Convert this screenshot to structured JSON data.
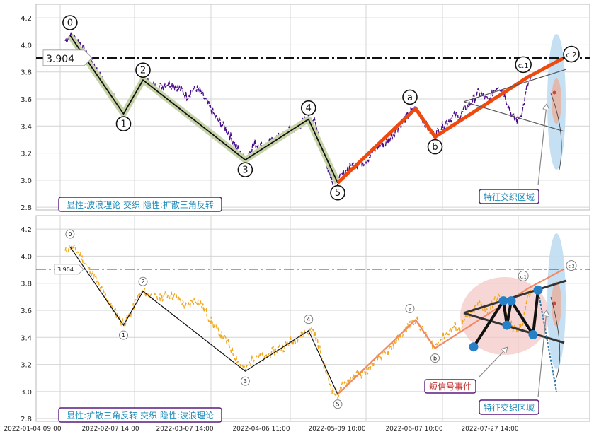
{
  "chart_data": [
    {
      "type": "line",
      "panel": "top",
      "ylim": [
        2.78,
        4.3
      ],
      "y_ticks": [
        "2.8",
        "3.0",
        "3.2",
        "3.4",
        "3.6",
        "3.8",
        "4.0",
        "4.2"
      ],
      "grid": true,
      "hline": {
        "value": 3.904,
        "label": "3.904"
      },
      "series": [
        {
          "values": [
            4.03,
            4.07,
            4.05,
            4.02,
            3.95,
            3.9,
            3.85,
            3.78,
            3.72,
            3.66,
            3.6,
            3.55,
            3.5,
            3.55,
            3.62,
            3.7,
            3.74,
            3.72,
            3.7,
            3.68,
            3.7,
            3.72,
            3.71,
            3.69,
            3.66,
            3.62,
            3.66,
            3.68,
            3.64,
            3.58,
            3.52,
            3.46,
            3.42,
            3.38,
            3.32,
            3.26,
            3.2,
            3.15,
            3.22,
            3.27,
            3.26,
            3.24,
            3.28,
            3.3,
            3.32,
            3.33,
            3.36,
            3.38,
            3.4,
            3.43,
            3.45,
            3.45,
            3.35,
            3.22,
            3.1,
            3.0,
            2.98,
            3.04,
            3.08,
            3.11,
            3.12,
            3.13,
            3.15,
            3.2,
            3.24,
            3.26,
            3.28,
            3.32,
            3.38,
            3.42,
            3.46,
            3.5,
            3.53,
            3.48,
            3.42,
            3.36,
            3.33,
            3.38,
            3.42,
            3.45,
            3.48,
            3.46,
            3.52,
            3.56,
            3.6,
            3.65,
            3.62,
            3.58,
            3.66,
            3.7,
            3.66,
            3.56,
            3.46,
            3.44,
            3.52,
            3.7,
            3.75
          ]
        }
      ],
      "wave_labels": [
        {
          "label": "0",
          "value": 4.07
        },
        {
          "label": "1",
          "value": 3.49
        },
        {
          "label": "2",
          "value": 3.74
        },
        {
          "label": "3",
          "value": 3.15
        },
        {
          "label": "4",
          "value": 3.45
        },
        {
          "label": "5",
          "value": 2.98
        },
        {
          "label": "a",
          "value": 3.53
        },
        {
          "label": "b",
          "value": 3.32
        },
        {
          "label": "c.1",
          "value": 3.76
        },
        {
          "label": "c.2",
          "value": 3.9
        }
      ],
      "annotations": [
        "显性:波浪理论 交织 隐性:扩散三角反转",
        "特征交织区域"
      ]
    },
    {
      "type": "line",
      "panel": "bottom",
      "ylim": [
        2.78,
        4.3
      ],
      "y_ticks": [
        "2.8",
        "3.0",
        "3.2",
        "3.4",
        "3.6",
        "3.8",
        "4.0",
        "4.2"
      ],
      "x_ticks": [
        "2022-01-04 09:00",
        "2022-02-07 14:00",
        "2022-03-07 14:00",
        "2022-04-06 11:00",
        "2022-05-09 10:00",
        "2022-06-07 10:00",
        "2022-07-27 14:00"
      ],
      "grid": true,
      "hline": {
        "value": 3.904,
        "label": "3.904"
      },
      "series": [
        {
          "values": [
            4.03,
            4.07,
            4.05,
            4.02,
            3.95,
            3.9,
            3.85,
            3.78,
            3.72,
            3.66,
            3.6,
            3.55,
            3.5,
            3.55,
            3.62,
            3.7,
            3.74,
            3.72,
            3.7,
            3.68,
            3.7,
            3.72,
            3.71,
            3.69,
            3.66,
            3.62,
            3.66,
            3.68,
            3.64,
            3.58,
            3.52,
            3.46,
            3.42,
            3.38,
            3.32,
            3.26,
            3.2,
            3.15,
            3.22,
            3.27,
            3.26,
            3.24,
            3.28,
            3.3,
            3.32,
            3.33,
            3.36,
            3.38,
            3.4,
            3.43,
            3.45,
            3.45,
            3.35,
            3.22,
            3.1,
            3.0,
            2.98,
            3.04,
            3.08,
            3.11,
            3.12,
            3.13,
            3.15,
            3.2,
            3.24,
            3.26,
            3.28,
            3.32,
            3.38,
            3.42,
            3.46,
            3.5,
            3.53,
            3.48,
            3.42,
            3.36,
            3.33,
            3.38,
            3.42,
            3.45,
            3.48,
            3.46,
            3.52,
            3.56,
            3.6,
            3.65,
            3.62,
            3.58,
            3.66,
            3.7,
            3.66,
            3.56,
            3.46,
            3.44,
            3.52,
            3.7,
            3.75
          ]
        }
      ],
      "wave_labels": [
        {
          "label": "0",
          "value": 4.07
        },
        {
          "label": "1",
          "value": 3.49
        },
        {
          "label": "2",
          "value": 3.74
        },
        {
          "label": "3",
          "value": 3.15
        },
        {
          "label": "4",
          "value": 3.45
        },
        {
          "label": "5",
          "value": 2.98
        },
        {
          "label": "a",
          "value": 3.53
        },
        {
          "label": "b",
          "value": 3.32
        },
        {
          "label": "c.1",
          "value": 3.76
        },
        {
          "label": "c.2",
          "value": 3.9
        }
      ],
      "signal_points": [
        3.33,
        3.67,
        3.67,
        3.49,
        3.42,
        3.75
      ],
      "annotations": [
        "显性:扩散三角反转 交织 隐性:波浪理论",
        "短信号事件",
        "特征交织区域"
      ]
    }
  ],
  "colors": {
    "top_series": "#4b0d8a",
    "bottom_series": "#f0a81e",
    "wave_trend": "#ee4a10",
    "wave_trend_light": "#f08a66",
    "wave_shadow": "#c6d3a8",
    "annotation_border": "#5a1a80",
    "annotation_text": "#1e8ab8",
    "event_text": "#c03030",
    "signal_dot": "#2580c8",
    "ellipse_red": "#f4c4c4",
    "ellipse_blue": "#bfdcf2"
  }
}
